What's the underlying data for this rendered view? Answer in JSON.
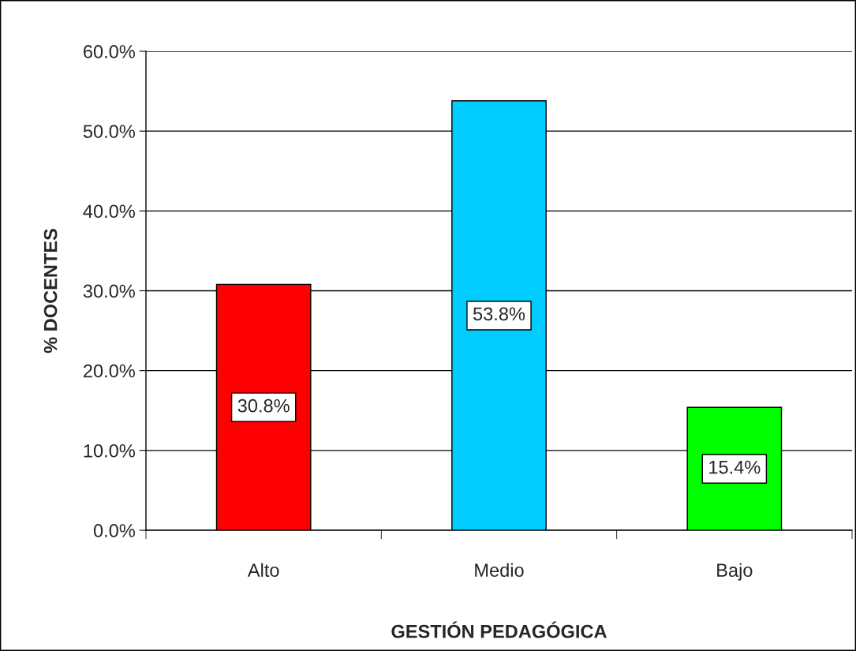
{
  "chart_data": {
    "type": "bar",
    "xlabel": "GESTIÓN PEDAGÓGICA",
    "ylabel": "% DOCENTES",
    "categories": [
      "Alto",
      "Medio",
      "Bajo"
    ],
    "values": [
      30.8,
      53.8,
      15.4
    ],
    "colors": [
      "#ff0000",
      "#00ccff",
      "#00ff00"
    ],
    "value_labels": [
      "30.8%",
      "53.8%",
      "15.4%"
    ],
    "ylim": [
      0,
      60
    ],
    "yticks": [
      {
        "value": 0,
        "label": "0.0%"
      },
      {
        "value": 10,
        "label": "10.0%"
      },
      {
        "value": 20,
        "label": "20.0%"
      },
      {
        "value": 30,
        "label": "30.0%"
      },
      {
        "value": 40,
        "label": "40.0%"
      },
      {
        "value": 50,
        "label": "50.0%"
      },
      {
        "value": 60,
        "label": "60.0%"
      }
    ],
    "grid": "y",
    "legend": false
  }
}
